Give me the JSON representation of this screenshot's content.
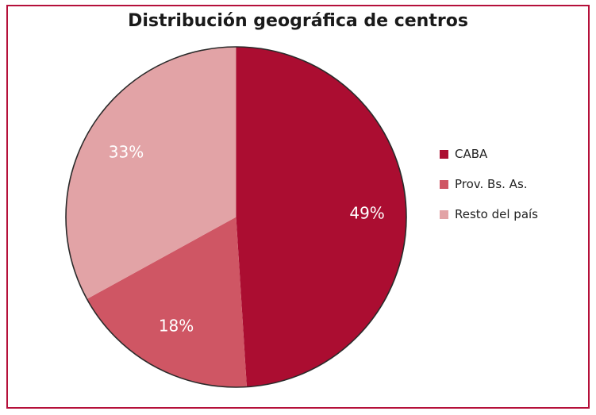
{
  "chart_data": {
    "type": "pie",
    "title": "Distribución geográfica de centros",
    "categories": [
      "CABA",
      "Prov. Bs. As.",
      "Resto del país"
    ],
    "values": [
      49,
      18,
      33
    ],
    "labels": [
      "49%",
      "18%",
      "33%"
    ],
    "colors": [
      "#ab0d31",
      "#cf5664",
      "#e2a3a6"
    ],
    "start_angle": "top (12 o'clock)",
    "direction": "clockwise",
    "legend_position": "right"
  },
  "legend": {
    "items": [
      {
        "label": "CABA",
        "color": "#ab0d31"
      },
      {
        "label": "Prov. Bs. As.",
        "color": "#cf5664"
      },
      {
        "label": "Resto del país",
        "color": "#e2a3a6"
      }
    ]
  },
  "frame_color": "#b5103a"
}
